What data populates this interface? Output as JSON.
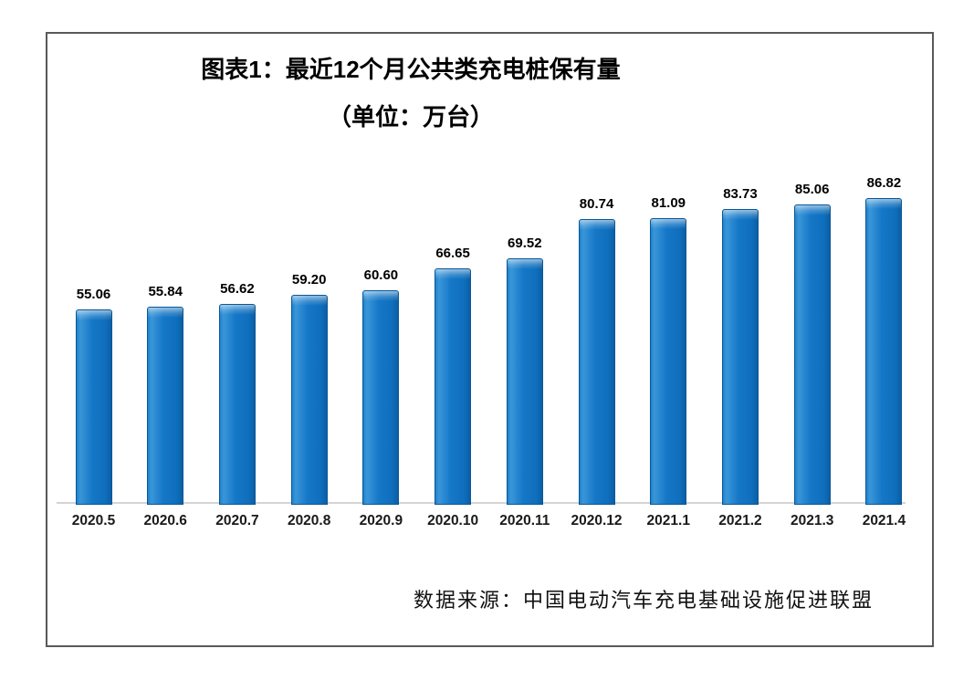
{
  "chart_data": {
    "type": "bar",
    "title": "图表1：最近12个月公共类充电桩保有量",
    "subtitle": "（单位：万台）",
    "categories": [
      "2020.5",
      "2020.6",
      "2020.7",
      "2020.8",
      "2020.9",
      "2020.10",
      "2020.11",
      "2020.12",
      "2021.1",
      "2021.2",
      "2021.3",
      "2021.4"
    ],
    "values": [
      55.06,
      55.84,
      56.62,
      59.2,
      60.6,
      66.65,
      69.52,
      80.74,
      81.09,
      83.73,
      85.06,
      86.82
    ],
    "value_labels": [
      "55.06",
      "55.84",
      "56.62",
      "59.20",
      "60.60",
      "66.65",
      "69.52",
      "80.74",
      "81.09",
      "83.73",
      "85.06",
      "86.82"
    ],
    "xlabel": "",
    "ylabel": "",
    "ylim": [
      0,
      90
    ],
    "grid": false,
    "legend_position": "none",
    "bar_color": "#1577c7",
    "bar_edge_color": "#0a5795",
    "axis_line_color": "#d4d4d4",
    "frame_border_color": "#58595b",
    "source_note": "数据来源：中国电动汽车充电基础设施促进联盟"
  }
}
